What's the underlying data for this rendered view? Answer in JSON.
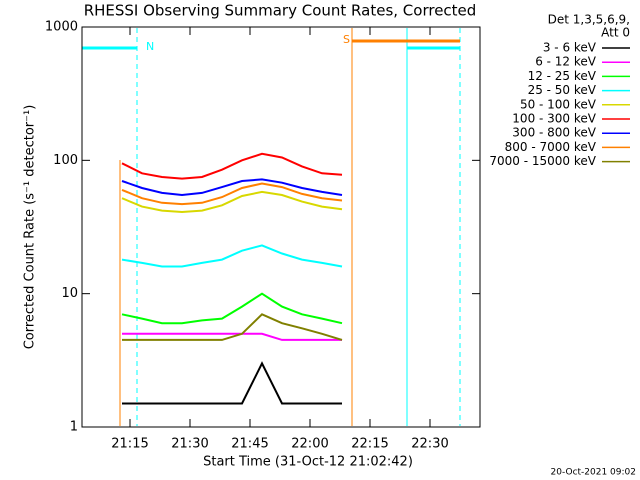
{
  "chart_data": {
    "type": "line",
    "title": "RHESSI Observing Summary Count Rates, Corrected",
    "xlabel": "Start Time (31-Oct-12 21:02:42)",
    "ylabel": "Corrected Count Rate (s⁻¹ detector⁻¹)",
    "legend_header": [
      "Det 1,3,5,6,9,",
      "Att 0"
    ],
    "footer": "20-Oct-2021 09:02",
    "flags": [
      "N",
      "S"
    ],
    "log_y": true,
    "xlim": [
      3,
      102.5
    ],
    "xticks": [
      {
        "value": 15,
        "label": "21:15"
      },
      {
        "value": 30,
        "label": "21:30"
      },
      {
        "value": 45,
        "label": "21:45"
      },
      {
        "value": 60,
        "label": "22:00"
      },
      {
        "value": 75,
        "label": "22:15"
      },
      {
        "value": 90,
        "label": "22:30"
      }
    ],
    "ylim": [
      1,
      1000
    ],
    "yticks": [
      1,
      10,
      100,
      1000
    ],
    "x": [
      13,
      18,
      23,
      28,
      33,
      38,
      43,
      48,
      53,
      58,
      63,
      68
    ],
    "series": [
      {
        "name": "3 - 6 keV",
        "color": "#000000",
        "values": [
          1.5,
          1.5,
          1.5,
          1.5,
          1.5,
          1.5,
          1.5,
          3,
          1.5,
          1.5,
          1.5,
          1.5
        ]
      },
      {
        "name": "6 - 12 keV",
        "color": "#ff00ff",
        "values": [
          5,
          5,
          5,
          5,
          5,
          5,
          5,
          5,
          4.5,
          4.5,
          4.5,
          4.5
        ]
      },
      {
        "name": "12 - 25 keV",
        "color": "#00ff00",
        "values": [
          7,
          6.5,
          6,
          6,
          6.3,
          6.5,
          8,
          10,
          8,
          7,
          6.5,
          6
        ]
      },
      {
        "name": "25 - 50 keV",
        "color": "#00ffff",
        "values": [
          18,
          17,
          16,
          16,
          17,
          18,
          21,
          23,
          20,
          18,
          17,
          16
        ]
      },
      {
        "name": "50 - 100 keV",
        "color": "#d8d800",
        "values": [
          52,
          45,
          42,
          41,
          42,
          46,
          54,
          58,
          55,
          49,
          45,
          43
        ]
      },
      {
        "name": "100 - 300 keV",
        "color": "#ff0000",
        "values": [
          95,
          80,
          75,
          73,
          75,
          85,
          100,
          112,
          105,
          90,
          80,
          78
        ]
      },
      {
        "name": "300 - 800 keV",
        "color": "#0000ff",
        "values": [
          70,
          62,
          57,
          55,
          57,
          63,
          70,
          72,
          68,
          62,
          58,
          55
        ]
      },
      {
        "name": "800 - 7000 keV",
        "color": "#ff8000",
        "values": [
          60,
          52,
          48,
          47,
          48,
          53,
          62,
          67,
          63,
          56,
          52,
          50
        ]
      },
      {
        "name": "7000 - 15000 keV",
        "color": "#808000",
        "values": [
          4.5,
          4.5,
          4.5,
          4.5,
          4.5,
          4.5,
          5,
          7,
          6,
          5.5,
          5,
          4.5
        ]
      }
    ]
  }
}
